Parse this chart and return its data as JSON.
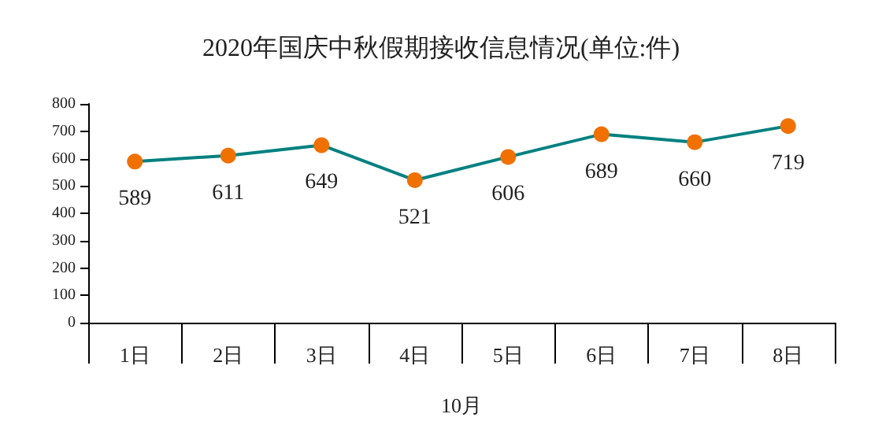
{
  "chart_data": {
    "type": "line",
    "title": "2020年国庆中秋假期接收信息情况(单位:件)",
    "xlabel": "10月",
    "categories": [
      "1日",
      "2日",
      "3日",
      "4日",
      "5日",
      "6日",
      "7日",
      "8日"
    ],
    "series": [
      {
        "color": "#008080",
        "colors": [
          "#f07000",
          "#f07000",
          "#f07000",
          "#f07000",
          "#f07000",
          "#f07000",
          "#f07000",
          "#f07000"
        ],
        "values": [
          589,
          611,
          649,
          521,
          606,
          689,
          660,
          719
        ]
      }
    ],
    "marker": "circle",
    "data_labels": true,
    "ylim": [
      0,
      800
    ],
    "yticks": [
      0,
      100,
      200,
      300,
      400,
      500,
      600,
      700,
      800
    ],
    "grid": false
  }
}
